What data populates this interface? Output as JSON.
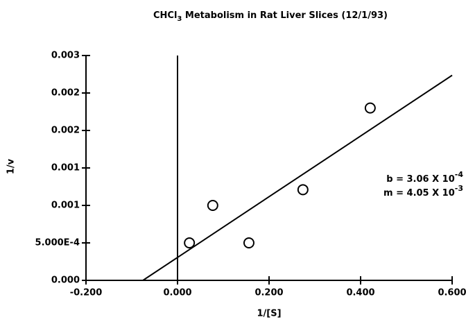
{
  "chart_data": {
    "type": "scatter",
    "title": {
      "main": "CHCl",
      "sub": "3",
      "rest": " Metabolism in Rat Liver Slices (12/1/93)"
    },
    "x_label": "1/[S]",
    "y_label": "1/v",
    "x": [
      0.026,
      0.077,
      0.156,
      0.274,
      0.421
    ],
    "values": [
      0.0005,
      0.001,
      0.0005,
      0.00121,
      0.0023
    ],
    "xlim": [
      -0.2,
      0.6
    ],
    "xticks": [
      {
        "value": -0.2,
        "label": "-0.200"
      },
      {
        "value": 0,
        "label": "0.000"
      },
      {
        "value": 0.2,
        "label": "0.200"
      },
      {
        "value": 0.4,
        "label": "0.400"
      },
      {
        "value": 0.6,
        "label": "0.600"
      }
    ],
    "ylim": [
      0,
      0.003
    ],
    "yticks": [
      {
        "value": 0,
        "label": "0.000"
      },
      {
        "value": 0.0005,
        "label": "5.000E-4"
      },
      {
        "value": 0.001,
        "label": "0.001"
      },
      {
        "value": 0.0015,
        "label": "0.001"
      },
      {
        "value": 0.002,
        "label": "0.002"
      },
      {
        "value": 0.0025,
        "label": "0.002"
      },
      {
        "value": 0.003,
        "label": "0.003"
      }
    ],
    "fit": {
      "intercept": 0.000306,
      "slope": 0.00405,
      "intercept_label": {
        "text": "b = 3.06 X 10",
        "exp": "-4"
      },
      "slope_label": {
        "text": "m = 4.05 X 10",
        "exp": "-3"
      }
    }
  }
}
